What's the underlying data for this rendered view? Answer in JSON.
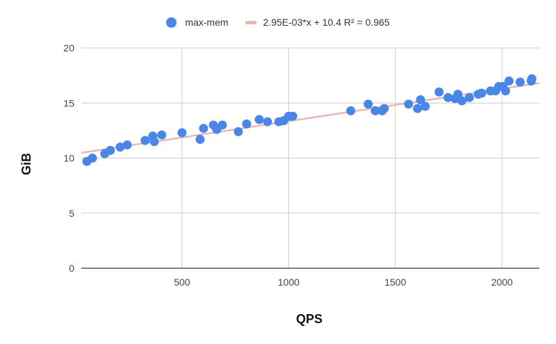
{
  "chart_data": {
    "type": "scatter",
    "title": "",
    "xlabel": "QPS",
    "ylabel": "GiB",
    "xlim": [
      28,
      2175
    ],
    "ylim": [
      0,
      20
    ],
    "xticks": [
      500,
      1000,
      1500,
      2000
    ],
    "yticks": [
      0,
      5,
      10,
      15,
      20
    ],
    "grid": true,
    "legend_position": "top",
    "series": [
      {
        "name": "max-mem",
        "color": "#4a86e8",
        "points": [
          [
            54,
            9.7
          ],
          [
            80,
            10.0
          ],
          [
            138,
            10.4
          ],
          [
            164,
            10.7
          ],
          [
            210,
            11.0
          ],
          [
            243,
            11.2
          ],
          [
            327,
            11.6
          ],
          [
            363,
            12.0
          ],
          [
            370,
            11.5
          ],
          [
            405,
            12.1
          ],
          [
            500,
            12.3
          ],
          [
            585,
            11.7
          ],
          [
            601,
            12.7
          ],
          [
            647,
            13.0
          ],
          [
            663,
            12.6
          ],
          [
            689,
            13.0
          ],
          [
            764,
            12.4
          ],
          [
            803,
            13.1
          ],
          [
            862,
            13.5
          ],
          [
            901,
            13.3
          ],
          [
            954,
            13.3
          ],
          [
            977,
            13.4
          ],
          [
            1000,
            13.8
          ],
          [
            1019,
            13.8
          ],
          [
            1291,
            14.3
          ],
          [
            1373,
            14.9
          ],
          [
            1406,
            14.3
          ],
          [
            1438,
            14.3
          ],
          [
            1448,
            14.5
          ],
          [
            1562,
            14.9
          ],
          [
            1604,
            14.5
          ],
          [
            1618,
            15.3
          ],
          [
            1640,
            14.7
          ],
          [
            1705,
            16.0
          ],
          [
            1747,
            15.5
          ],
          [
            1780,
            15.4
          ],
          [
            1793,
            15.8
          ],
          [
            1812,
            15.2
          ],
          [
            1847,
            15.5
          ],
          [
            1889,
            15.8
          ],
          [
            1905,
            15.9
          ],
          [
            1946,
            16.1
          ],
          [
            1970,
            16.1
          ],
          [
            1985,
            16.5
          ],
          [
            2004,
            16.5
          ],
          [
            2017,
            16.1
          ],
          [
            2033,
            17.0
          ],
          [
            2085,
            16.9
          ],
          [
            2137,
            17.0
          ],
          [
            2140,
            17.2
          ]
        ]
      }
    ],
    "trendline": {
      "name": "2.95E-03*x + 10.4 R² = 0.965",
      "color": "#e6b8af",
      "slope": 0.00295,
      "intercept": 10.4,
      "r2": 0.965,
      "x_range": [
        28,
        2175
      ]
    }
  },
  "legend": {
    "series_label": "max-mem",
    "trend_label": "2.95E-03*x + 10.4 R² = 0.965"
  }
}
